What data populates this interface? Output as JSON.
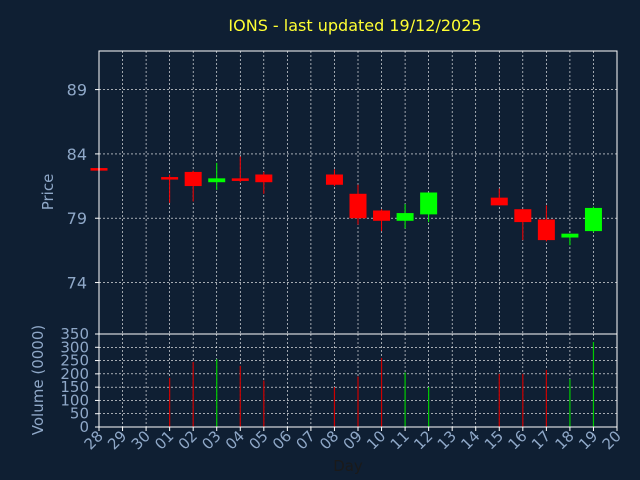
{
  "chart_data": {
    "type": "candlestick",
    "title": "IONS - last updated 19/12/2025",
    "xlabel": "Day",
    "colors": {
      "background": "#0f1f33",
      "title": "#ffff33",
      "axis_text": "#8fa8c8",
      "axis_line": "#ffffff",
      "grid": "#ffffff",
      "up": "#00ff00",
      "down": "#ff0000",
      "volume_up": "#00cc00",
      "volume_down": "#cc0000"
    },
    "days": [
      "28",
      "29",
      "30",
      "01",
      "02",
      "03",
      "04",
      "05",
      "06",
      "07",
      "08",
      "09",
      "10",
      "11",
      "12",
      "13",
      "14",
      "15",
      "16",
      "17",
      "18",
      "19",
      "20"
    ],
    "price_panel": {
      "ylabel": "Price",
      "ylim": [
        70,
        92
      ],
      "yticks": [
        74,
        79,
        84,
        89
      ],
      "grid": true
    },
    "volume_panel": {
      "ylabel": "Volume (0000)",
      "ylim": [
        0,
        350
      ],
      "yticks": [
        0,
        50,
        100,
        150,
        200,
        250,
        300,
        350
      ],
      "grid": true
    },
    "candles": [
      {
        "day": "28",
        "open": 82.9,
        "high": 82.9,
        "low": 82.7,
        "close": 82.7,
        "volume": 0
      },
      {
        "day": "01",
        "open": 82.2,
        "high": 82.4,
        "low": 80.2,
        "close": 82.1,
        "volume": 185
      },
      {
        "day": "02",
        "open": 82.6,
        "high": 82.7,
        "low": 80.3,
        "close": 81.5,
        "volume": 245
      },
      {
        "day": "03",
        "open": 81.8,
        "high": 83.3,
        "low": 81.2,
        "close": 82.1,
        "volume": 255
      },
      {
        "day": "04",
        "open": 82.1,
        "high": 83.8,
        "low": 81.8,
        "close": 81.9,
        "volume": 230
      },
      {
        "day": "05",
        "open": 82.4,
        "high": 82.6,
        "low": 80.9,
        "close": 81.8,
        "volume": 175
      },
      {
        "day": "08",
        "open": 82.4,
        "high": 82.8,
        "low": 81.5,
        "close": 81.6,
        "volume": 150
      },
      {
        "day": "09",
        "open": 80.9,
        "high": 81.6,
        "low": 78.5,
        "close": 79.0,
        "volume": 190
      },
      {
        "day": "10",
        "open": 79.6,
        "high": 79.7,
        "low": 78.0,
        "close": 78.8,
        "volume": 260
      },
      {
        "day": "11",
        "open": 78.8,
        "high": 80.1,
        "low": 78.2,
        "close": 79.4,
        "volume": 205
      },
      {
        "day": "12",
        "open": 79.3,
        "high": 81.0,
        "low": 78.7,
        "close": 81.0,
        "volume": 150
      },
      {
        "day": "15",
        "open": 80.6,
        "high": 81.3,
        "low": 80.0,
        "close": 80.0,
        "volume": 200
      },
      {
        "day": "16",
        "open": 79.7,
        "high": 79.7,
        "low": 77.3,
        "close": 78.7,
        "volume": 200
      },
      {
        "day": "17",
        "open": 78.9,
        "high": 80.0,
        "low": 77.2,
        "close": 77.3,
        "volume": 215
      },
      {
        "day": "18",
        "open": 77.5,
        "high": 77.8,
        "low": 76.9,
        "close": 77.8,
        "volume": 180
      },
      {
        "day": "19",
        "open": 78.0,
        "high": 79.9,
        "low": 77.9,
        "close": 79.8,
        "volume": 320
      }
    ]
  }
}
